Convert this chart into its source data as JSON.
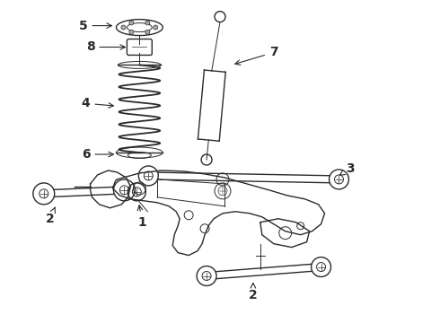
{
  "bg_color": "#ffffff",
  "line_color": "#2a2a2a",
  "fig_width": 4.9,
  "fig_height": 3.6,
  "dpi": 100,
  "label_fontsize": 10,
  "label_fontsize_small": 9
}
